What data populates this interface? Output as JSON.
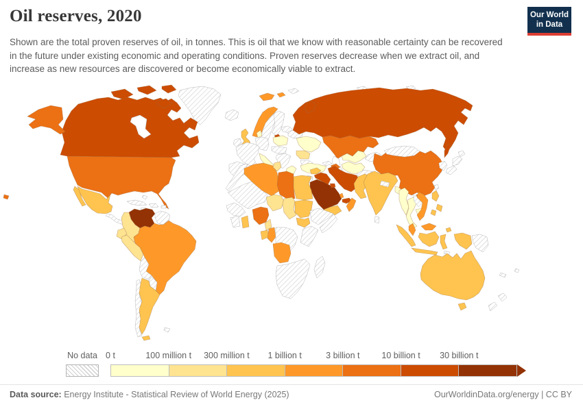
{
  "header": {
    "title": "Oil reserves, 2020",
    "subtitle": "Shown are the total proven reserves of oil, in tonnes. This is oil that we know with reasonable certainty can be recovered in the future under existing economic and operating conditions. Proven reserves decrease when we extract oil, and increase as new resources are discovered or become economically viable to extract.",
    "logo": {
      "line1": "Our World",
      "line2": "in Data",
      "bg": "#12304e",
      "accent": "#dc3e32"
    }
  },
  "chart_data": {
    "type": "heatmap",
    "subtype": "choropleth-world-map",
    "title": "Oil reserves, 2020",
    "year": "2020",
    "unit": "tonnes",
    "legend": {
      "no_data_label": "No data",
      "position": "bottom",
      "bins": [
        {
          "threshold_label": "0 t",
          "range": "0-100 million t",
          "color": "#ffffcc"
        },
        {
          "threshold_label": "100 million t",
          "range": "100-300 million t",
          "color": "#fee391"
        },
        {
          "threshold_label": "300 million t",
          "range": "300 million-1 billion t",
          "color": "#fec44f"
        },
        {
          "threshold_label": "1 billion t",
          "range": "1-3 billion t",
          "color": "#fe9929"
        },
        {
          "threshold_label": "3 billion t",
          "range": "3-10 billion t",
          "color": "#ec7014"
        },
        {
          "threshold_label": "10 billion t",
          "range": "10-30 billion t",
          "color": "#cc4c02"
        },
        {
          "threshold_label": "30 billion t",
          "range": "30+ billion t",
          "color": "#933204"
        }
      ]
    },
    "countries": {
      "canada": 5,
      "united-states": 4,
      "mexico": 2,
      "venezuela": 6,
      "colombia": 1,
      "ecuador": 1,
      "peru": 1,
      "brazil": 3,
      "argentina": 2,
      "norway": 3,
      "denmark": 0,
      "united-kingdom": 2,
      "italy": 0,
      "poland": 0,
      "ukraine": 0,
      "romania": 1,
      "greece": 0,
      "turkey": 0,
      "russia": 5,
      "kazakhstan": 4,
      "azerbaijan": 4,
      "uzbekistan": 0,
      "turkmenistan": 0,
      "iran": 5,
      "iraq": 5,
      "saudi-arabia": 6,
      "kuwait": 5,
      "united-arab-emirates": 5,
      "qatar": 3,
      "oman": 3,
      "yemen": 2,
      "syria": 2,
      "algeria": 3,
      "tunisia": 1,
      "libya": 4,
      "egypt": 2,
      "niger": 1,
      "chad": 1,
      "sudan": 2,
      "south-sudan": 2,
      "nigeria": 4,
      "ghana": 2,
      "cameroon": 1,
      "gabon": 2,
      "congo": 3,
      "angola": 3,
      "china": 4,
      "india": 2,
      "pakistan": 2,
      "bangladesh": 0,
      "myanmar": 0,
      "thailand": 0,
      "cambodia": 0,
      "vietnam": 3,
      "malaysia": 3,
      "indonesia": 2,
      "philippines": 2,
      "australia": 2
    },
    "no_data_regions": [
      "greenland",
      "iceland",
      "ireland",
      "sweden",
      "finland",
      "estonia-latvia",
      "belarus",
      "france",
      "germany",
      "spain-portugal",
      "czech-hungary",
      "balkans",
      "bulgaria",
      "morocco",
      "mali-mauritania",
      "senegal-guinea",
      "cote-divoire",
      "democratic-republic-of-congo",
      "ethiopia",
      "somalia",
      "kenya-tanzania",
      "southern-africa",
      "madagascar",
      "central-america",
      "cuba",
      "hispaniola",
      "jamaica",
      "bahamas",
      "puerto-rico",
      "guyana-suriname",
      "bolivia",
      "paraguay",
      "chile",
      "falkland-islands",
      "georgia",
      "jordan-israel",
      "afghanistan",
      "kyrgyzstan-tajikistan",
      "nepal",
      "sri-lanka",
      "mongolia",
      "korea",
      "japan",
      "taiwan",
      "laos",
      "papua-new-guinea",
      "new-zealand",
      "new-caledonia",
      "fiji",
      "timor",
      "franz-josef-land",
      "severnaya-zemlya",
      "new-siberian-islands"
    ]
  },
  "footer": {
    "source_label": "Data source:",
    "source_text": " Energy Institute - Statistical Review of World Energy (2025)",
    "link": "OurWorldinData.org/energy",
    "sep": " | ",
    "license": "CC BY"
  }
}
